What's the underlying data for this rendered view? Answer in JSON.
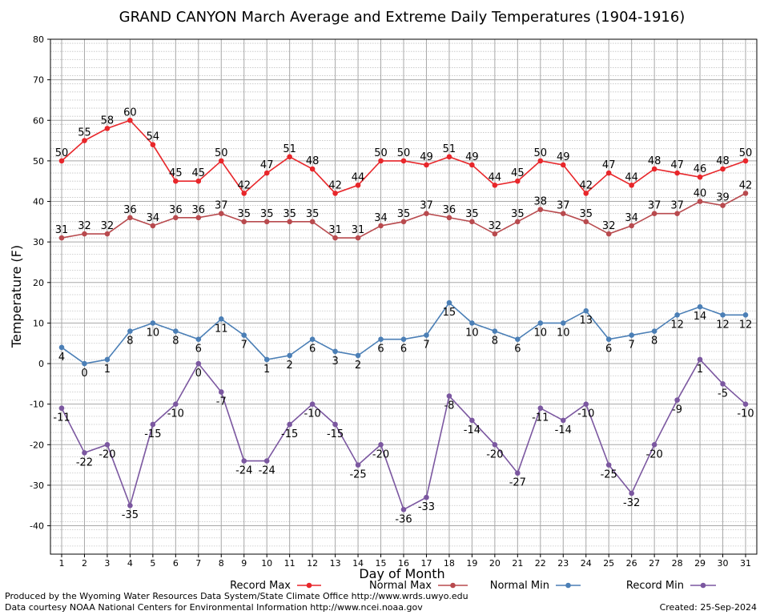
{
  "chart_data": {
    "type": "line",
    "title": "GRAND CANYON March Average and Extreme Daily Temperatures (1904-1916)",
    "xlabel": "Day of Month",
    "ylabel": "Temperature (F)",
    "ylim": [
      -47,
      80
    ],
    "yticks": [
      80,
      70,
      60,
      50,
      40,
      30,
      20,
      10,
      0,
      -10,
      -20,
      -30,
      -40
    ],
    "grid": true,
    "legend_position": "bottom",
    "x": [
      1,
      2,
      3,
      4,
      5,
      6,
      7,
      8,
      9,
      10,
      11,
      12,
      13,
      14,
      15,
      16,
      17,
      18,
      19,
      20,
      21,
      22,
      23,
      24,
      25,
      26,
      27,
      28,
      29,
      30,
      31
    ],
    "series": [
      {
        "name": "Record Max",
        "color": "#e8262a",
        "label_position": "above",
        "values": [
          50,
          55,
          58,
          60,
          54,
          45,
          45,
          50,
          42,
          47,
          51,
          48,
          42,
          44,
          50,
          50,
          49,
          51,
          49,
          44,
          45,
          50,
          49,
          42,
          47,
          44,
          48,
          47,
          46,
          48,
          50
        ]
      },
      {
        "name": "Normal Max",
        "color": "#b84a4e",
        "label_position": "above",
        "values": [
          31,
          32,
          32,
          36,
          34,
          36,
          36,
          37,
          35,
          35,
          35,
          35,
          31,
          31,
          34,
          35,
          37,
          36,
          35,
          32,
          35,
          38,
          37,
          35,
          32,
          34,
          37,
          37,
          40,
          39,
          42
        ]
      },
      {
        "name": "Normal Min",
        "color": "#4b7fb6",
        "label_position": "below",
        "values": [
          4,
          0,
          1,
          8,
          10,
          8,
          6,
          11,
          7,
          1,
          2,
          6,
          3,
          2,
          6,
          6,
          7,
          15,
          10,
          8,
          6,
          10,
          10,
          13,
          6,
          7,
          8,
          12,
          14,
          12,
          12
        ]
      },
      {
        "name": "Record Min",
        "color": "#7b57a0",
        "label_position": "below",
        "values": [
          -11,
          -22,
          -20,
          -35,
          -15,
          -10,
          0,
          -7,
          -24,
          -24,
          -15,
          -10,
          -15,
          -25,
          -20,
          -36,
          -33,
          -8,
          -14,
          -20,
          -27,
          -11,
          -14,
          -10,
          -25,
          -32,
          -20,
          -9,
          1,
          -5,
          -10
        ]
      }
    ]
  },
  "footer": {
    "produced_by": "Produced by the Wyoming Water Resources Data System/State Climate Office http://www.wrds.uwyo.edu",
    "courtesy": "Data courtesy NOAA National Centers for Environmental Information http://www.ncei.noaa.gov",
    "created": "Created: 25-Sep-2024"
  }
}
